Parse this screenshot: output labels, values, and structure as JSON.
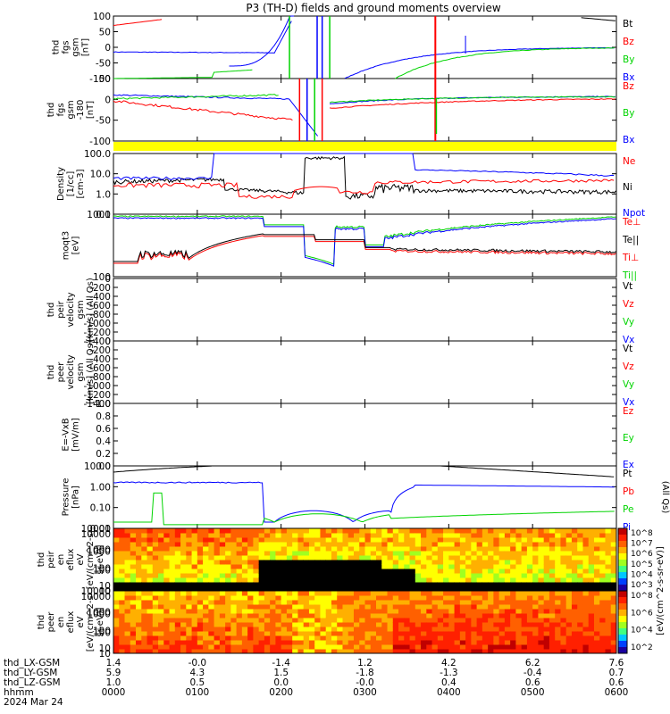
{
  "title": "P3 (TH-D) fields and ground moments overview",
  "colors": {
    "black": "#000000",
    "red": "#ff0000",
    "green": "#00d400",
    "blue": "#0000ff",
    "yellow": "#ffff00"
  },
  "chart_data": {
    "type": "line",
    "x_ticks": [
      "0000",
      "0100",
      "0200",
      "0300",
      "0400",
      "0500",
      "0600"
    ],
    "ephemeris": {
      "labels": [
        "thd_LX-GSM",
        "thd_LY-GSM",
        "thd_LZ-GSM",
        "hhmm",
        "2024 Mar 24"
      ],
      "rows": [
        [
          "1.4",
          "-0.0",
          "-1.4",
          "1.2",
          "4.2",
          "6.2",
          "7.6"
        ],
        [
          "5.9",
          "4.3",
          "1.5",
          "-1.8",
          "-1.3",
          "-0.4",
          "0.7"
        ],
        [
          "1.0",
          "0.5",
          "0.0",
          "-0.0",
          "0.4",
          "0.6",
          "0.6"
        ]
      ]
    },
    "panels": [
      {
        "id": "fgs",
        "ylabel": [
          "thd",
          "fgs",
          "gsm",
          "[nT]"
        ],
        "ylim": [
          -100,
          100
        ],
        "yticks": [
          "100",
          "50",
          "0",
          "-50",
          "-100"
        ],
        "legend": [
          {
            "name": "Bt",
            "color": "black"
          },
          {
            "name": "Bz",
            "color": "red"
          },
          {
            "name": "By",
            "color": "green"
          },
          {
            "name": "Bx",
            "color": "blue"
          }
        ]
      },
      {
        "id": "fgs2",
        "ylabel": [
          "thd",
          "fgs",
          "gsm",
          "-180",
          "[nT]"
        ],
        "ylim": [
          -150,
          60
        ],
        "yticks": [
          "50",
          "0",
          "-50",
          "-100"
        ],
        "legend": [
          {
            "name": "Bz",
            "color": "red"
          },
          {
            "name": "By",
            "color": "green"
          },
          {
            "name": "Bx",
            "color": "blue"
          }
        ]
      },
      {
        "id": "density",
        "ylabel": [
          "Density",
          "[1/cc]",
          "[cm-3]"
        ],
        "ylim": [
          0.1,
          100
        ],
        "log": true,
        "yticks": [
          "100.0",
          "10.0",
          "1.0",
          "0.1"
        ],
        "legend": [
          {
            "name": "Ne",
            "color": "red"
          },
          {
            "name": "Ni",
            "color": "black"
          },
          {
            "name": "Npot",
            "color": "blue"
          }
        ]
      },
      {
        "id": "temp",
        "ylabel": [
          "moqt3",
          "[eV]"
        ],
        "ylim": [
          50,
          3000
        ],
        "log": true,
        "yticks": [
          "1000",
          "100"
        ],
        "legend": [
          {
            "name": "Te⊥",
            "color": "red"
          },
          {
            "name": "Te||",
            "color": "black"
          },
          {
            "name": "Ti⊥",
            "color": "red"
          },
          {
            "name": "Ti||",
            "color": "green"
          }
        ]
      },
      {
        "id": "vi",
        "ylabel": [
          "thd",
          "peir",
          "velocity",
          "gsm",
          "[km/s] (All Qs)"
        ],
        "ylim": [
          -1400,
          0
        ],
        "yticks": [
          "0",
          "-200",
          "-400",
          "-600",
          "-800",
          "-1000",
          "-1200",
          "-1400"
        ],
        "legend": [
          {
            "name": "Vt",
            "color": "black"
          },
          {
            "name": "Vz",
            "color": "red"
          },
          {
            "name": "Vy",
            "color": "green"
          },
          {
            "name": "Vx",
            "color": "blue"
          }
        ]
      },
      {
        "id": "ve",
        "ylabel": [
          "thd",
          "peer",
          "velocity",
          "gsm",
          "[km/s] (All Qs)"
        ],
        "ylim": [
          -1400,
          0
        ],
        "yticks": [
          "0",
          "-200",
          "-400",
          "-600",
          "-800",
          "-1000",
          "-1200",
          "-1400"
        ],
        "legend": [
          {
            "name": "Vt",
            "color": "black"
          },
          {
            "name": "Vz",
            "color": "red"
          },
          {
            "name": "Vy",
            "color": "green"
          },
          {
            "name": "Vx",
            "color": "blue"
          }
        ]
      },
      {
        "id": "efield",
        "ylabel": [
          "E=-VxB",
          "[mV/m]"
        ],
        "ylim": [
          0,
          1
        ],
        "yticks": [
          "1.0",
          "0.8",
          "0.6",
          "0.4",
          "0.2",
          "0.0"
        ],
        "legend": [
          {
            "name": "Ez",
            "color": "red"
          },
          {
            "name": "Ey",
            "color": "green"
          },
          {
            "name": "Ex",
            "color": "blue"
          }
        ]
      },
      {
        "id": "pressure",
        "ylabel": [
          "Pressure",
          "[nPa]"
        ],
        "ylim": [
          0.01,
          10
        ],
        "log": true,
        "yticks": [
          "10.00",
          "1.00",
          "0.10",
          "0.01"
        ],
        "legend": [
          {
            "name": "Pt",
            "color": "black"
          },
          {
            "name": "Pb",
            "color": "red"
          },
          {
            "name": "Pe",
            "color": "green"
          },
          {
            "name": "Pi",
            "color": "blue"
          }
        ],
        "side_label": "(All Qs)"
      },
      {
        "id": "ion_spec",
        "ylabel": [
          "thd",
          "peir",
          "en",
          "eflux",
          "eV",
          "[eV/(cm^2-s-",
          "sr-eV)]"
        ],
        "yticks": [
          "10000",
          "1000",
          "100",
          "10"
        ]
      },
      {
        "id": "ele_spec",
        "ylabel": [
          "thd",
          "peer",
          "en",
          "eflux",
          "eV",
          "[eV/(cm^2-s-",
          "sr-eV)]"
        ],
        "yticks": [
          "10000",
          "1000",
          "100",
          "10"
        ]
      }
    ],
    "colorbar": {
      "label": "[eV/(cm^2-s-sr-eV)]",
      "ticks_top": [
        "10^8",
        "10^7",
        "10^6",
        "10^5",
        "10^4",
        "10^3"
      ],
      "ticks_bottom": [
        "10^8",
        "10^6",
        "10^4",
        "10^2"
      ]
    }
  }
}
